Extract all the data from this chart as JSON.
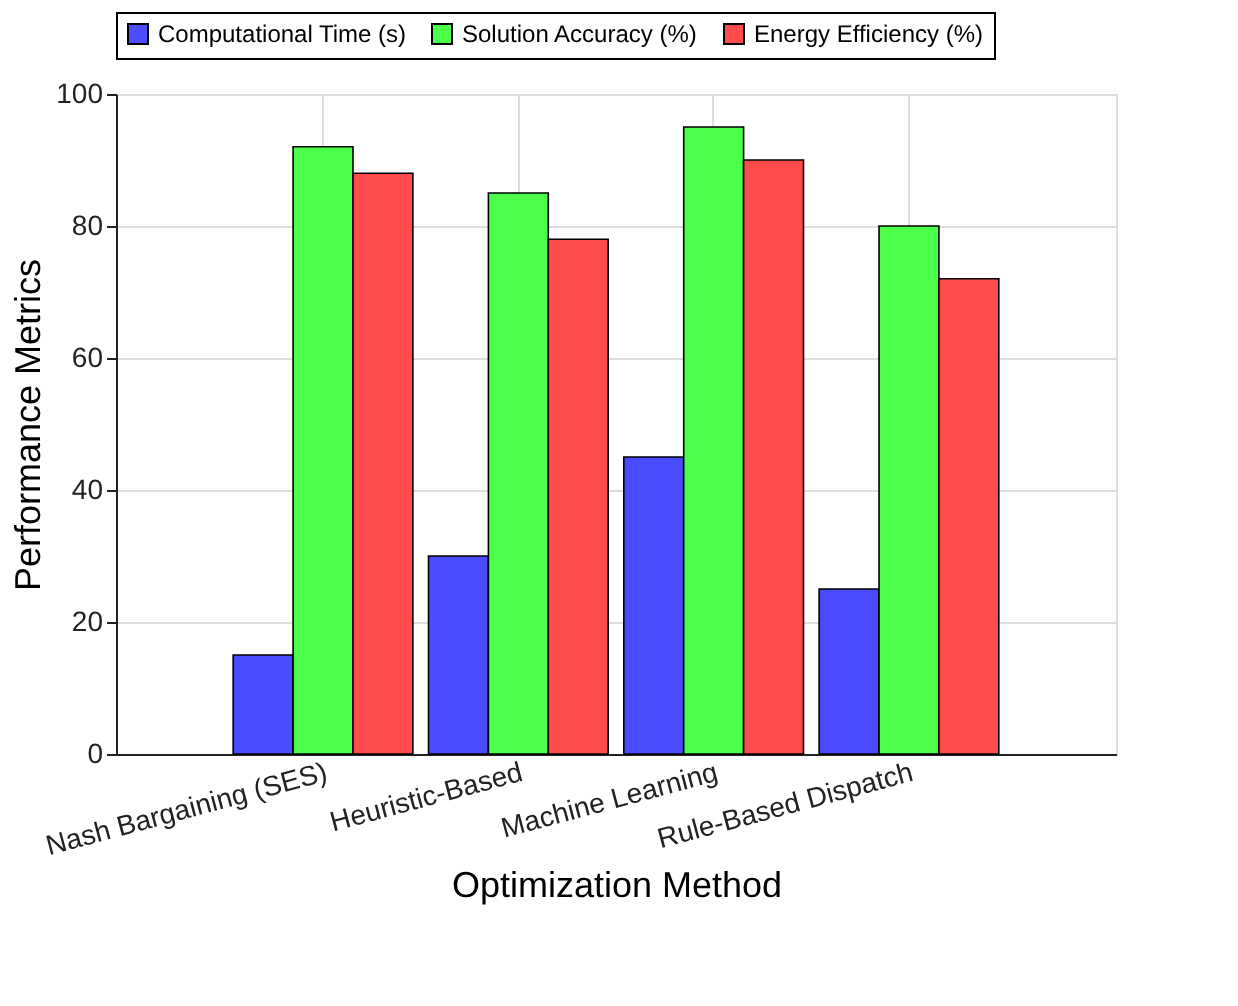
{
  "chart_data": {
    "type": "bar",
    "xlabel": "Optimization Method",
    "ylabel": "Performance Metrics",
    "categories": [
      "Nash Bargaining (SES)",
      "Heuristic-Based",
      "Machine Learning",
      "Rule-Based Dispatch"
    ],
    "series": [
      {
        "name": "Computational Time (s)",
        "color": "#4b4bff",
        "values": [
          15,
          30,
          45,
          25
        ]
      },
      {
        "name": "Solution Accuracy (%)",
        "color": "#4bff4b",
        "values": [
          92,
          85,
          95,
          80
        ]
      },
      {
        "name": "Energy Efficiency (%)",
        "color": "#ff4b4b",
        "values": [
          88,
          78,
          90,
          72
        ]
      }
    ],
    "ylim": [
      0,
      100
    ],
    "yticks": [
      0,
      20,
      40,
      60,
      80,
      100
    ],
    "grid": true,
    "legend": "top"
  }
}
